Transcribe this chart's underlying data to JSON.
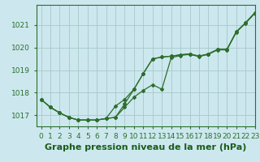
{
  "bg_color": "#cce8ee",
  "grid_color": "#aacccc",
  "line_color": "#2d6e2d",
  "marker_color": "#2d6e2d",
  "xlabel": "Graphe pression niveau de la mer (hPa)",
  "xlabel_color": "#1a5c1a",
  "ylim": [
    1016.5,
    1021.9
  ],
  "xlim": [
    -0.5,
    23
  ],
  "yticks": [
    1017,
    1018,
    1019,
    1020,
    1021
  ],
  "xticks": [
    0,
    1,
    2,
    3,
    4,
    5,
    6,
    7,
    8,
    9,
    10,
    11,
    12,
    13,
    14,
    15,
    16,
    17,
    18,
    19,
    20,
    21,
    22,
    23
  ],
  "line1_y": [
    1017.7,
    1017.35,
    1017.1,
    1016.9,
    1016.78,
    1016.78,
    1016.78,
    1016.85,
    1016.9,
    1017.5,
    1018.15,
    1018.85,
    1019.5,
    1019.58,
    1019.62,
    1019.68,
    1019.72,
    1019.62,
    1019.72,
    1019.92,
    1019.92,
    1020.7,
    1021.1,
    1021.55
  ],
  "line2_y": [
    1017.7,
    1017.35,
    1017.1,
    1016.9,
    1016.78,
    1016.78,
    1016.78,
    1016.85,
    1016.9,
    1017.35,
    1017.8,
    1018.1,
    1018.35,
    1018.15,
    1019.55,
    1019.65,
    1019.7,
    1019.6,
    1019.7,
    1019.9,
    1019.9,
    1020.68,
    1021.08,
    1021.52
  ],
  "line3_y": [
    1017.7,
    1017.35,
    1017.1,
    1016.9,
    1016.78,
    1016.78,
    1016.78,
    1016.85,
    1017.4,
    1017.7,
    1018.15,
    1018.85,
    1019.5,
    1019.58,
    1019.62,
    1019.68,
    1019.72,
    1019.62,
    1019.72,
    1019.92,
    1019.92,
    1020.7,
    1021.1,
    1021.55
  ],
  "tick_fontsize": 6.5,
  "label_fontsize": 8,
  "marker_size": 2.0,
  "line_width": 0.9
}
